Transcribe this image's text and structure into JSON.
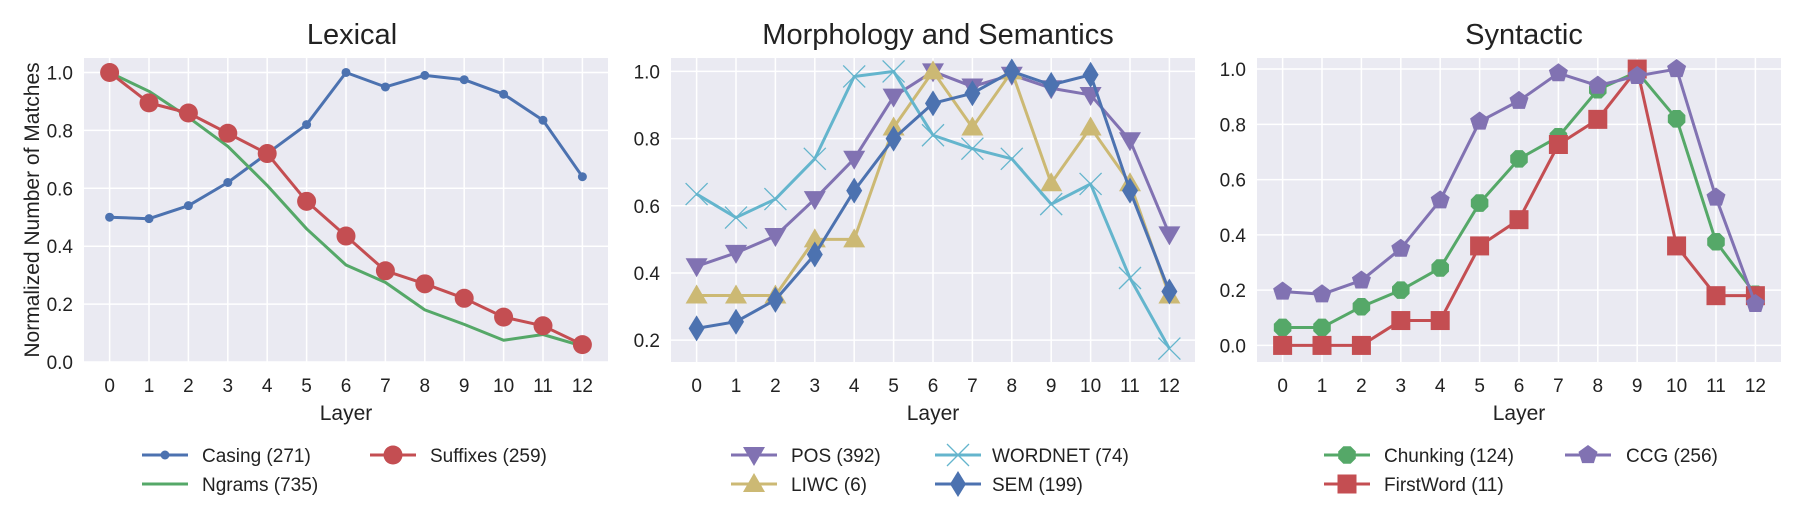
{
  "chart_data": [
    {
      "type": "line",
      "title": "Lexical",
      "xlabel": "Layer",
      "ylabel": "Normalized Number of Matches",
      "x": [
        0,
        1,
        2,
        3,
        4,
        5,
        6,
        7,
        8,
        9,
        10,
        11,
        12
      ],
      "ylim": [
        0,
        1.05
      ],
      "yticks": [
        0.0,
        0.2,
        0.4,
        0.6,
        0.8,
        1.0
      ],
      "legend_columns": 2,
      "series": [
        {
          "name": "Casing (271)",
          "color": "#4c72b0",
          "marker": "circle-small",
          "values": [
            0.5,
            0.495,
            0.54,
            0.62,
            0.72,
            0.82,
            1.0,
            0.95,
            0.99,
            0.975,
            0.925,
            0.835,
            0.64
          ]
        },
        {
          "name": "Ngrams (735)",
          "color": "#55a868",
          "marker": "none",
          "values": [
            1.0,
            0.935,
            0.845,
            0.745,
            0.61,
            0.46,
            0.335,
            0.275,
            0.18,
            0.13,
            0.075,
            0.095,
            0.055
          ]
        },
        {
          "name": "Suffixes (259)",
          "color": "#c44e52",
          "marker": "circle",
          "values": [
            1.0,
            0.895,
            0.86,
            0.79,
            0.72,
            0.555,
            0.435,
            0.315,
            0.27,
            0.22,
            0.155,
            0.125,
            0.06
          ]
        }
      ]
    },
    {
      "type": "line",
      "title": "Morphology and Semantics",
      "xlabel": "Layer",
      "ylabel": "",
      "x": [
        0,
        1,
        2,
        3,
        4,
        5,
        6,
        7,
        8,
        9,
        10,
        11,
        12
      ],
      "ylim": [
        0.135,
        1.04
      ],
      "yticks": [
        0.2,
        0.4,
        0.6,
        0.8,
        1.0
      ],
      "legend_columns": 2,
      "series": [
        {
          "name": "POS (392)",
          "color": "#8172b2",
          "marker": "triangle-down",
          "values": [
            0.42,
            0.46,
            0.51,
            0.62,
            0.74,
            0.925,
            1.0,
            0.955,
            0.99,
            0.95,
            0.93,
            0.795,
            0.515
          ]
        },
        {
          "name": "LIWC (6)",
          "color": "#ccb974",
          "marker": "triangle-up",
          "values": [
            0.333,
            0.333,
            0.333,
            0.5,
            0.5,
            0.833,
            1.0,
            0.833,
            1.0,
            0.667,
            0.833,
            0.667,
            0.333
          ]
        },
        {
          "name": "WORDNET (74)",
          "color": "#64b5cd",
          "marker": "x",
          "values": [
            0.635,
            0.565,
            0.62,
            0.74,
            0.985,
            1.0,
            0.81,
            0.77,
            0.74,
            0.605,
            0.665,
            0.385,
            0.175
          ]
        },
        {
          "name": "SEM (199)",
          "color": "#4c72b0",
          "marker": "diamond",
          "values": [
            0.235,
            0.255,
            0.32,
            0.455,
            0.645,
            0.8,
            0.905,
            0.935,
            1.0,
            0.96,
            0.99,
            0.645,
            0.345
          ]
        }
      ]
    },
    {
      "type": "line",
      "title": "Syntactic",
      "xlabel": "Layer",
      "ylabel": "",
      "x": [
        0,
        1,
        2,
        3,
        4,
        5,
        6,
        7,
        8,
        9,
        10,
        11,
        12
      ],
      "ylim": [
        -0.06,
        1.04
      ],
      "yticks": [
        0.0,
        0.2,
        0.4,
        0.6,
        0.8,
        1.0
      ],
      "legend_columns": 2,
      "series": [
        {
          "name": "Chunking (124)",
          "color": "#55a868",
          "marker": "octagon",
          "values": [
            0.065,
            0.065,
            0.14,
            0.2,
            0.28,
            0.515,
            0.675,
            0.755,
            0.925,
            0.99,
            0.82,
            0.375,
            0.185
          ]
        },
        {
          "name": "FirstWord (11)",
          "color": "#c44e52",
          "marker": "square",
          "values": [
            0.0,
            0.0,
            0.0,
            0.09,
            0.09,
            0.36,
            0.455,
            0.727,
            0.818,
            1.0,
            0.36,
            0.18,
            0.18
          ]
        },
        {
          "name": "CCG (256)",
          "color": "#8172b2",
          "marker": "pentagon",
          "values": [
            0.195,
            0.185,
            0.235,
            0.35,
            0.525,
            0.81,
            0.885,
            0.985,
            0.94,
            0.975,
            1.0,
            0.535,
            0.15
          ]
        }
      ]
    }
  ]
}
